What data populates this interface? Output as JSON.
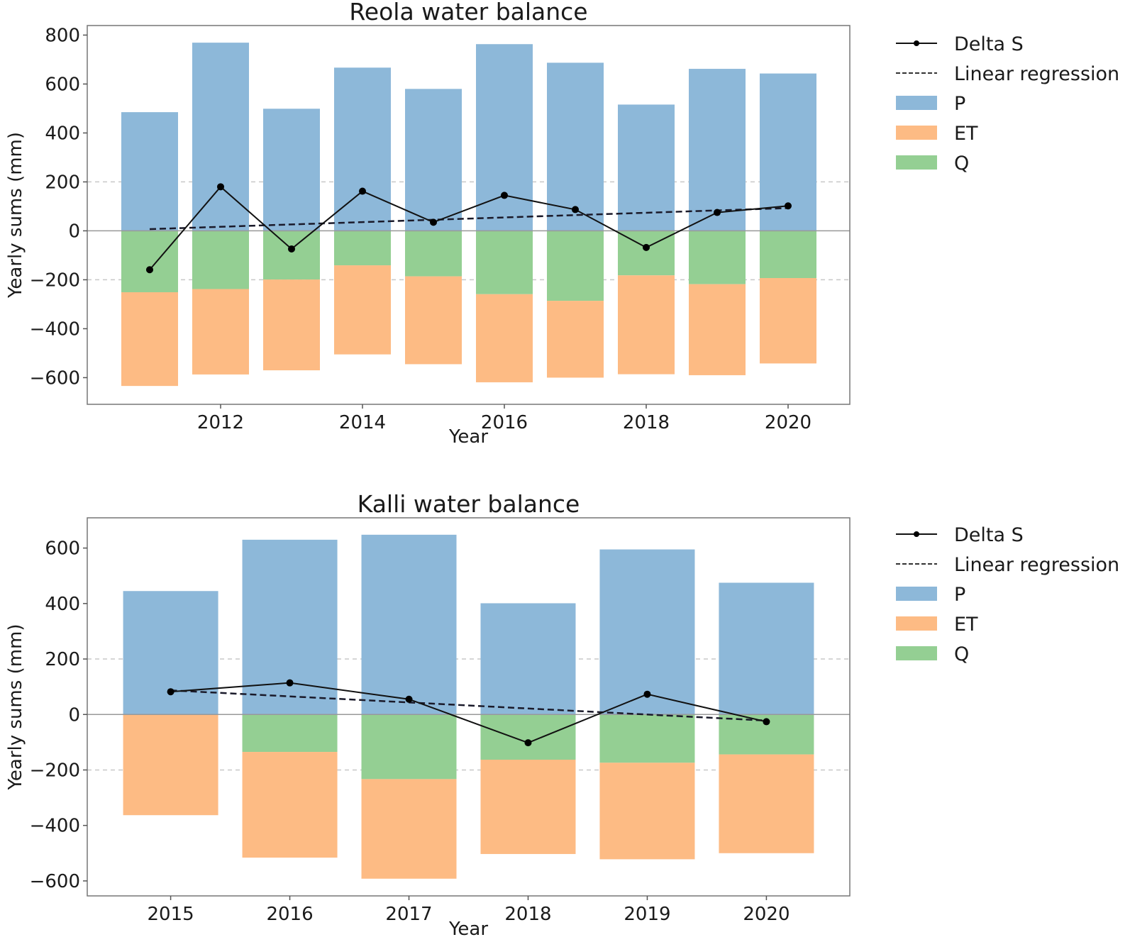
{
  "chart_data": [
    {
      "type": "bar",
      "title": "Reola water balance",
      "xlabel": "Year",
      "ylabel": "Yearly sums (mm)",
      "categories": [
        2011,
        2012,
        2013,
        2014,
        2015,
        2016,
        2017,
        2018,
        2019,
        2020
      ],
      "xticks": [
        2012,
        2014,
        2016,
        2018,
        2020
      ],
      "yticks": [
        -600,
        -400,
        -200,
        0,
        200,
        400,
        600,
        800
      ],
      "ylim": [
        -709,
        839
      ],
      "xlim": [
        2010.12,
        2020.87
      ],
      "grid": "dashed horizontal at -200 and 200",
      "legend_position": "outside-right-top",
      "series": [
        {
          "name": "P",
          "kind": "bar",
          "color": "#8db8d9",
          "values": [
            485,
            769,
            499,
            667,
            580,
            763,
            687,
            516,
            662,
            643
          ]
        },
        {
          "name": "Q",
          "kind": "bar-negative-stacked",
          "color": "#94cf93",
          "values": [
            251,
            238,
            199,
            141,
            186,
            259,
            286,
            182,
            218,
            193
          ]
        },
        {
          "name": "ET",
          "kind": "bar-negative-stacked-below-Q",
          "color": "#fdbb84",
          "values": [
            383,
            349,
            371,
            364,
            359,
            360,
            314,
            404,
            372,
            349
          ]
        },
        {
          "name": "Delta S",
          "kind": "line-marker",
          "color": "#000000",
          "values": [
            -159,
            180,
            -74,
            162,
            35,
            145,
            87,
            -68,
            75,
            102
          ]
        },
        {
          "name": "Linear regression",
          "kind": "dashed-line",
          "color": "#000000",
          "start": 7,
          "end": 93
        }
      ],
      "legend": [
        "Delta S",
        "Linear regression",
        "P",
        "ET",
        "Q"
      ]
    },
    {
      "type": "bar",
      "title": "Kalli water balance",
      "xlabel": "Year",
      "ylabel": "Yearly sums (mm)",
      "categories": [
        2015,
        2016,
        2017,
        2018,
        2019,
        2020
      ],
      "xticks": [
        2015,
        2016,
        2017,
        2018,
        2019,
        2020
      ],
      "yticks": [
        -600,
        -400,
        -200,
        0,
        200,
        400,
        600
      ],
      "ylim": [
        -654,
        709
      ],
      "xlim": [
        2014.3,
        2020.7
      ],
      "grid": "dashed horizontal at -200 and 200",
      "legend_position": "outside-right-top",
      "series": [
        {
          "name": "P",
          "kind": "bar",
          "color": "#8db8d9",
          "values": [
            445,
            630,
            648,
            401,
            595,
            475
          ]
        },
        {
          "name": "Q",
          "kind": "bar-negative-stacked",
          "color": "#94cf93",
          "values": [
            0,
            135,
            233,
            163,
            174,
            144
          ]
        },
        {
          "name": "ET",
          "kind": "bar-negative-stacked-below-Q",
          "color": "#fdbb84",
          "values": [
            363,
            381,
            359,
            340,
            348,
            356
          ]
        },
        {
          "name": "Delta S",
          "kind": "line-marker",
          "color": "#000000",
          "values": [
            82,
            114,
            55,
            -102,
            73,
            -26
          ]
        },
        {
          "name": "Linear regression",
          "kind": "dashed-line",
          "color": "#000000",
          "start": 87,
          "end": -22
        }
      ],
      "legend": [
        "Delta S",
        "Linear regression",
        "P",
        "ET",
        "Q"
      ]
    }
  ]
}
